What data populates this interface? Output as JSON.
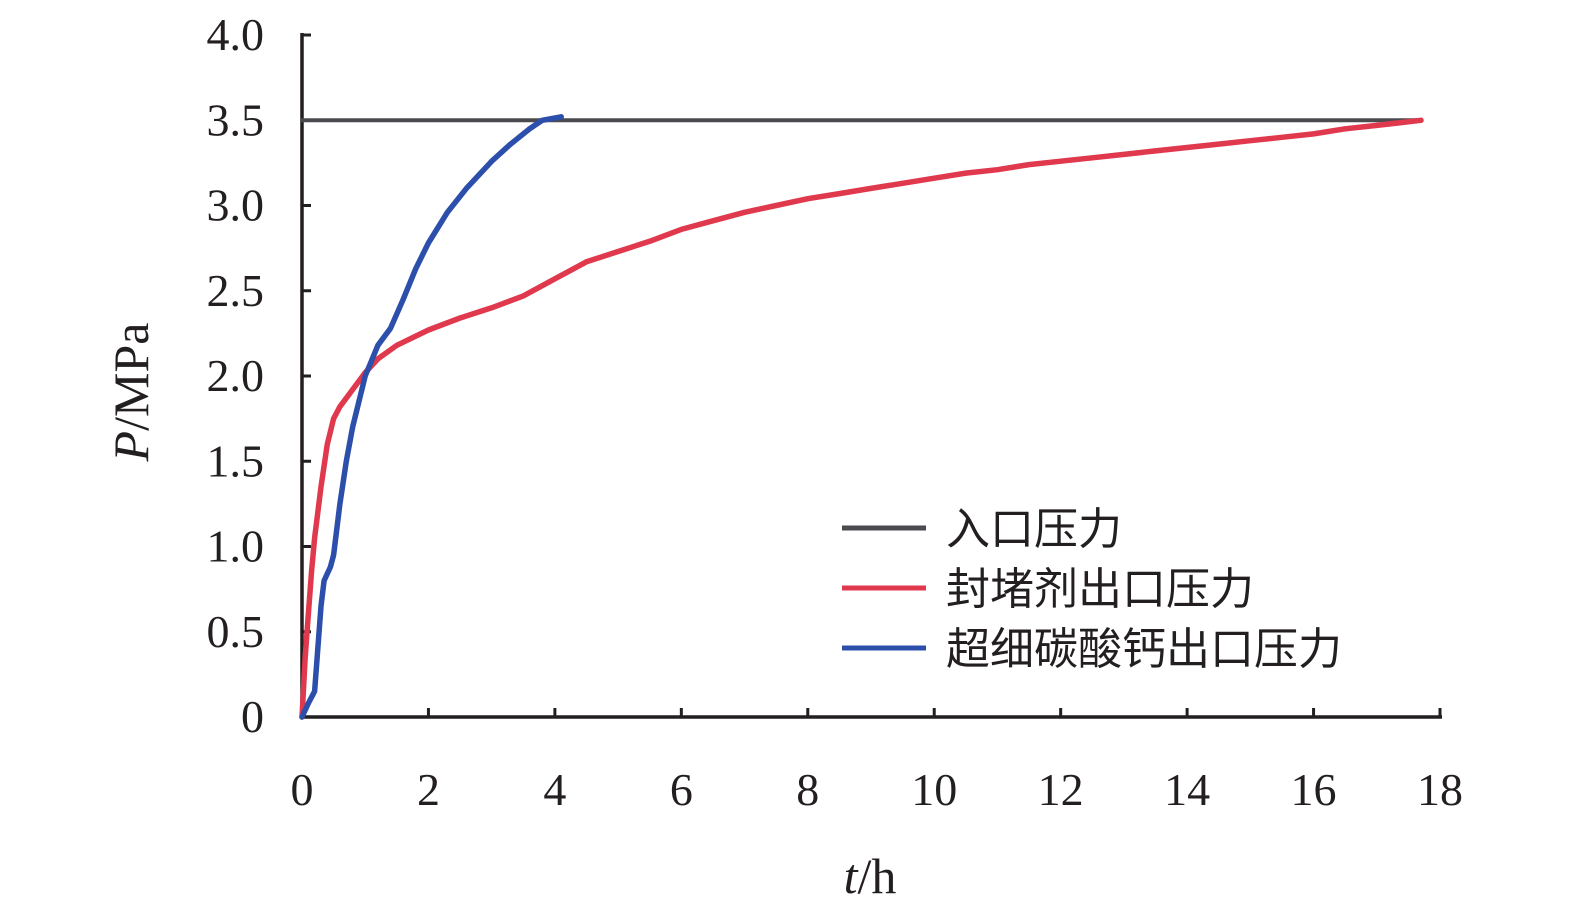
{
  "chart_data": {
    "type": "line",
    "x_axis": {
      "label_var": "t",
      "label_unit": "/h",
      "ticks": [
        "0",
        "2",
        "4",
        "6",
        "8",
        "10",
        "12",
        "14",
        "16",
        "18"
      ],
      "range": [
        0,
        18
      ]
    },
    "y_axis": {
      "label_var": "P",
      "label_unit": "/MPa",
      "ticks": [
        "0",
        "0.5",
        "1.0",
        "1.5",
        "2.0",
        "2.5",
        "3.0",
        "3.5",
        "4.0"
      ],
      "range": [
        0,
        4
      ]
    },
    "grid": false,
    "legend_position": "bottom-right",
    "series": [
      {
        "name": "入口压力",
        "color": "#4a4a4f",
        "points": [
          [
            0,
            3.5
          ],
          [
            17.7,
            3.5
          ]
        ]
      },
      {
        "name": "封堵剂出口压力",
        "color": "#e0394d",
        "points": [
          [
            0,
            0
          ],
          [
            0.05,
            0.35
          ],
          [
            0.1,
            0.6
          ],
          [
            0.15,
            0.85
          ],
          [
            0.2,
            1.05
          ],
          [
            0.3,
            1.35
          ],
          [
            0.4,
            1.6
          ],
          [
            0.5,
            1.75
          ],
          [
            0.6,
            1.82
          ],
          [
            0.8,
            1.92
          ],
          [
            1.0,
            2.02
          ],
          [
            1.2,
            2.1
          ],
          [
            1.5,
            2.18
          ],
          [
            2.0,
            2.27
          ],
          [
            2.5,
            2.34
          ],
          [
            3.0,
            2.4
          ],
          [
            3.5,
            2.47
          ],
          [
            4.0,
            2.57
          ],
          [
            4.5,
            2.67
          ],
          [
            5.0,
            2.73
          ],
          [
            5.5,
            2.79
          ],
          [
            6.0,
            2.86
          ],
          [
            6.5,
            2.91
          ],
          [
            7.0,
            2.96
          ],
          [
            7.5,
            3.0
          ],
          [
            8.0,
            3.04
          ],
          [
            8.5,
            3.07
          ],
          [
            9.0,
            3.1
          ],
          [
            9.5,
            3.13
          ],
          [
            10.0,
            3.16
          ],
          [
            10.5,
            3.19
          ],
          [
            11.0,
            3.21
          ],
          [
            11.5,
            3.24
          ],
          [
            12.0,
            3.26
          ],
          [
            12.5,
            3.28
          ],
          [
            13.0,
            3.3
          ],
          [
            13.5,
            3.32
          ],
          [
            14.0,
            3.34
          ],
          [
            14.5,
            3.36
          ],
          [
            15.0,
            3.38
          ],
          [
            15.5,
            3.4
          ],
          [
            16.0,
            3.42
          ],
          [
            16.5,
            3.45
          ],
          [
            17.0,
            3.47
          ],
          [
            17.7,
            3.5
          ]
        ]
      },
      {
        "name": "超细碳酸钙出口压力",
        "color": "#2b4faa",
        "points": [
          [
            0,
            0
          ],
          [
            0.1,
            0.08
          ],
          [
            0.2,
            0.15
          ],
          [
            0.25,
            0.4
          ],
          [
            0.3,
            0.65
          ],
          [
            0.35,
            0.8
          ],
          [
            0.45,
            0.88
          ],
          [
            0.5,
            0.95
          ],
          [
            0.6,
            1.25
          ],
          [
            0.7,
            1.5
          ],
          [
            0.8,
            1.7
          ],
          [
            1.0,
            2.0
          ],
          [
            1.2,
            2.18
          ],
          [
            1.4,
            2.28
          ],
          [
            1.6,
            2.45
          ],
          [
            1.8,
            2.63
          ],
          [
            2.0,
            2.78
          ],
          [
            2.3,
            2.96
          ],
          [
            2.6,
            3.1
          ],
          [
            3.0,
            3.26
          ],
          [
            3.3,
            3.36
          ],
          [
            3.6,
            3.45
          ],
          [
            3.8,
            3.5
          ],
          [
            4.1,
            3.52
          ]
        ]
      }
    ]
  }
}
